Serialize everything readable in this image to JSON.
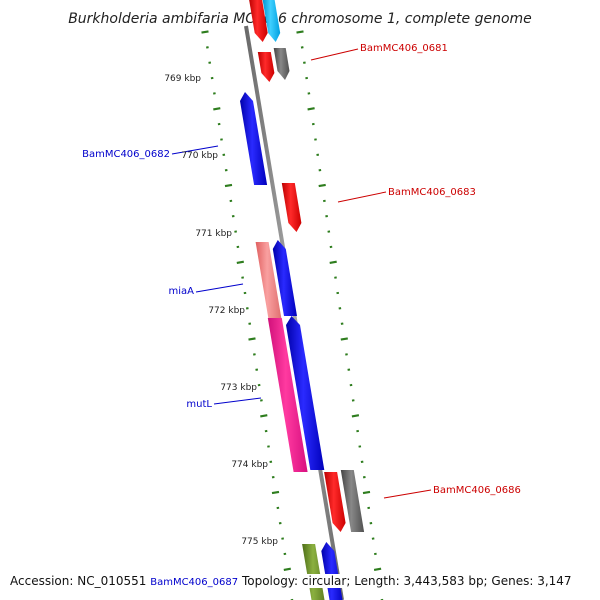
{
  "title": "Burkholderia ambifaria MC40-6 chromosome 1, complete genome",
  "ticks": [
    "769 kbp",
    "770 kbp",
    "771 kbp",
    "772 kbp",
    "773 kbp",
    "774 kbp",
    "775 kbp"
  ],
  "gene_labels": [
    "BamMC406_0681",
    "BamMC406_0682",
    "BamMC406_0683",
    "miaA",
    "mutL",
    "BamMC406_0686",
    "BamMC406_0687"
  ],
  "footer": {
    "accession": "Accession: NC_010551",
    "extra_label": "BamMC406_0687",
    "summary": "Topology: circular; Length: 3,443,583 bp; Genes: 3,147"
  },
  "colors": {
    "backbone": "#8c8c8c",
    "ticks": "#2e7d1e",
    "forward_gene": "#0000ee",
    "reverse_gene": "#ee0000",
    "rna_gene": "#666666",
    "mia_gene": "#f08080",
    "mutl_gene": "#ff1493",
    "cyan_gene": "#00bfff",
    "olive_gene": "#6b8e23",
    "label_reverse": "#cc0000",
    "label_forward": "#0000cc"
  }
}
